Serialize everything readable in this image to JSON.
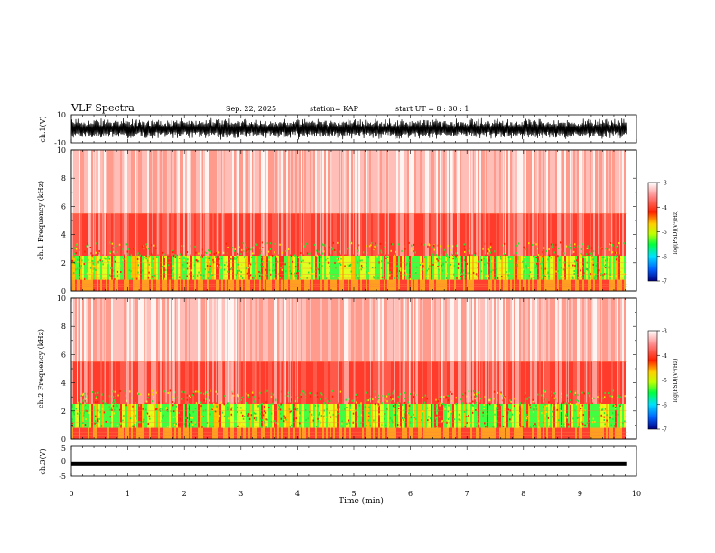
{
  "header": {
    "title": "VLF Spectra",
    "date": "Sep. 22, 2025",
    "station": "station= KAP",
    "start": "start  UT =  8 : 30 : 1"
  },
  "chart_data": {
    "type": "heatmap",
    "title": "VLF Spectra",
    "xlabel": "Time  (min)",
    "xlim": [
      0,
      10
    ],
    "x_ticks": [
      "0",
      "1",
      "2",
      "3",
      "4",
      "5",
      "6",
      "7",
      "8",
      "9",
      "10"
    ],
    "data_end_min": 9.82,
    "panels": [
      {
        "id": "ch1-wave",
        "type": "line",
        "ylabel": "ch.1(V)",
        "ylim": [
          -10,
          10
        ],
        "y_ticks": [
          "10",
          "-10"
        ],
        "amplitude_typical": 8
      },
      {
        "id": "ch1-spectrogram",
        "type": "heatmap",
        "ylabel": "ch.1  Frequency  (kHz)",
        "ylim": [
          0,
          10
        ],
        "y_ticks": [
          "0",
          "2",
          "4",
          "6",
          "8",
          "10"
        ],
        "colorbar": {
          "label": "log(PSD)(V²/Hz)",
          "range": [
            -7,
            -3
          ],
          "ticks": [
            "-3",
            "-4",
            "-5",
            "-6",
            "-7"
          ],
          "colors": [
            "#000080",
            "#0060ff",
            "#00e0ff",
            "#00ff40",
            "#c0ff00",
            "#ffd000",
            "#ff2000",
            "#ff8080",
            "#ffffff"
          ]
        }
      },
      {
        "id": "ch2-spectrogram",
        "type": "heatmap",
        "ylabel": "ch.2  Frequency  (kHz)",
        "ylim": [
          0,
          10
        ],
        "y_ticks": [
          "0",
          "2",
          "4",
          "6",
          "8",
          "10"
        ],
        "colorbar": {
          "label": "log(PSD)(V²/Hz)",
          "range": [
            -7,
            -3
          ],
          "ticks": [
            "-3",
            "-4",
            "-5",
            "-6",
            "-7"
          ],
          "colors": [
            "#000080",
            "#0060ff",
            "#00e0ff",
            "#00ff40",
            "#c0ff00",
            "#ffd000",
            "#ff2000",
            "#ff8080",
            "#ffffff"
          ]
        }
      },
      {
        "id": "ch3-wave",
        "type": "line",
        "ylabel": "ch.3(V)",
        "ylim": [
          -5,
          5
        ],
        "y_ticks": [
          "5",
          "0",
          "-5"
        ],
        "level": -1
      }
    ]
  }
}
